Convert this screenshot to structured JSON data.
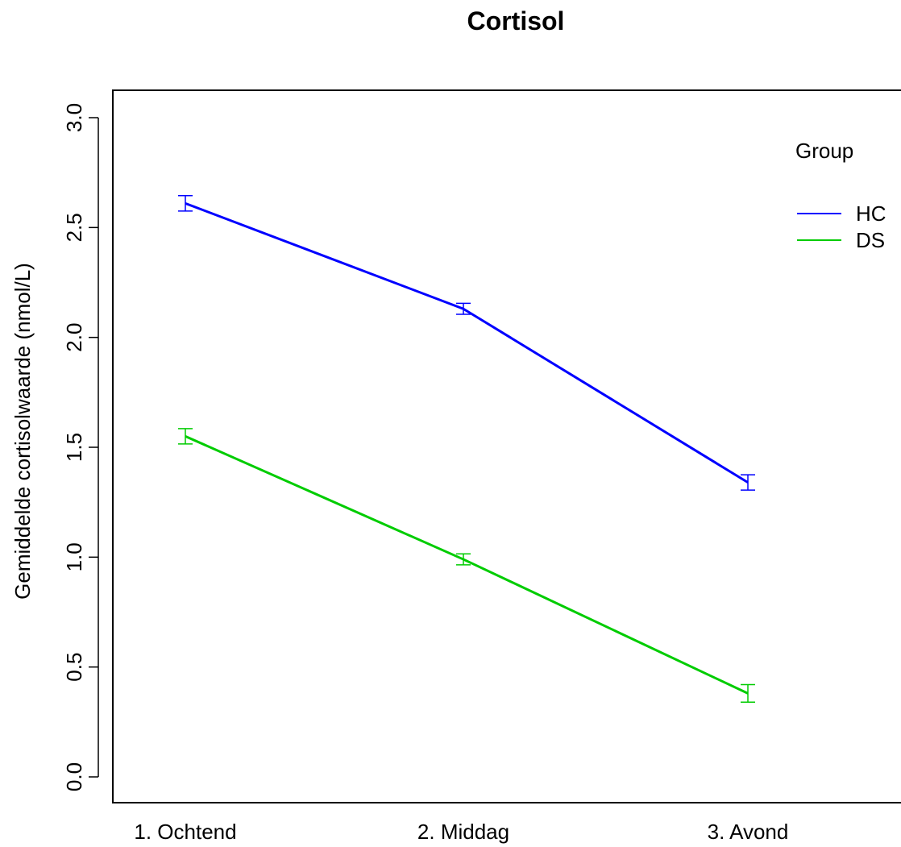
{
  "chart_data": {
    "type": "line",
    "title": "Cortisol",
    "xlabel": "",
    "ylabel": "Gemiddelde cortisolwaarde (nmol/L)",
    "categories": [
      "1. Ochtend",
      "2. Middag",
      "3. Avond"
    ],
    "ylim": [
      0,
      3.0
    ],
    "yticks": [
      "0.0",
      "0.5",
      "1.0",
      "1.5",
      "2.0",
      "2.5",
      "3.0"
    ],
    "grid": false,
    "legend": {
      "title": "Group",
      "position": "right"
    },
    "series": [
      {
        "name": "HC",
        "color": "#0000ff",
        "values": [
          2.61,
          2.13,
          1.34
        ],
        "error": [
          0.035,
          0.025,
          0.035
        ]
      },
      {
        "name": "DS",
        "color": "#00cc00",
        "values": [
          1.55,
          0.99,
          0.38
        ],
        "error": [
          0.035,
          0.025,
          0.04
        ]
      }
    ]
  }
}
